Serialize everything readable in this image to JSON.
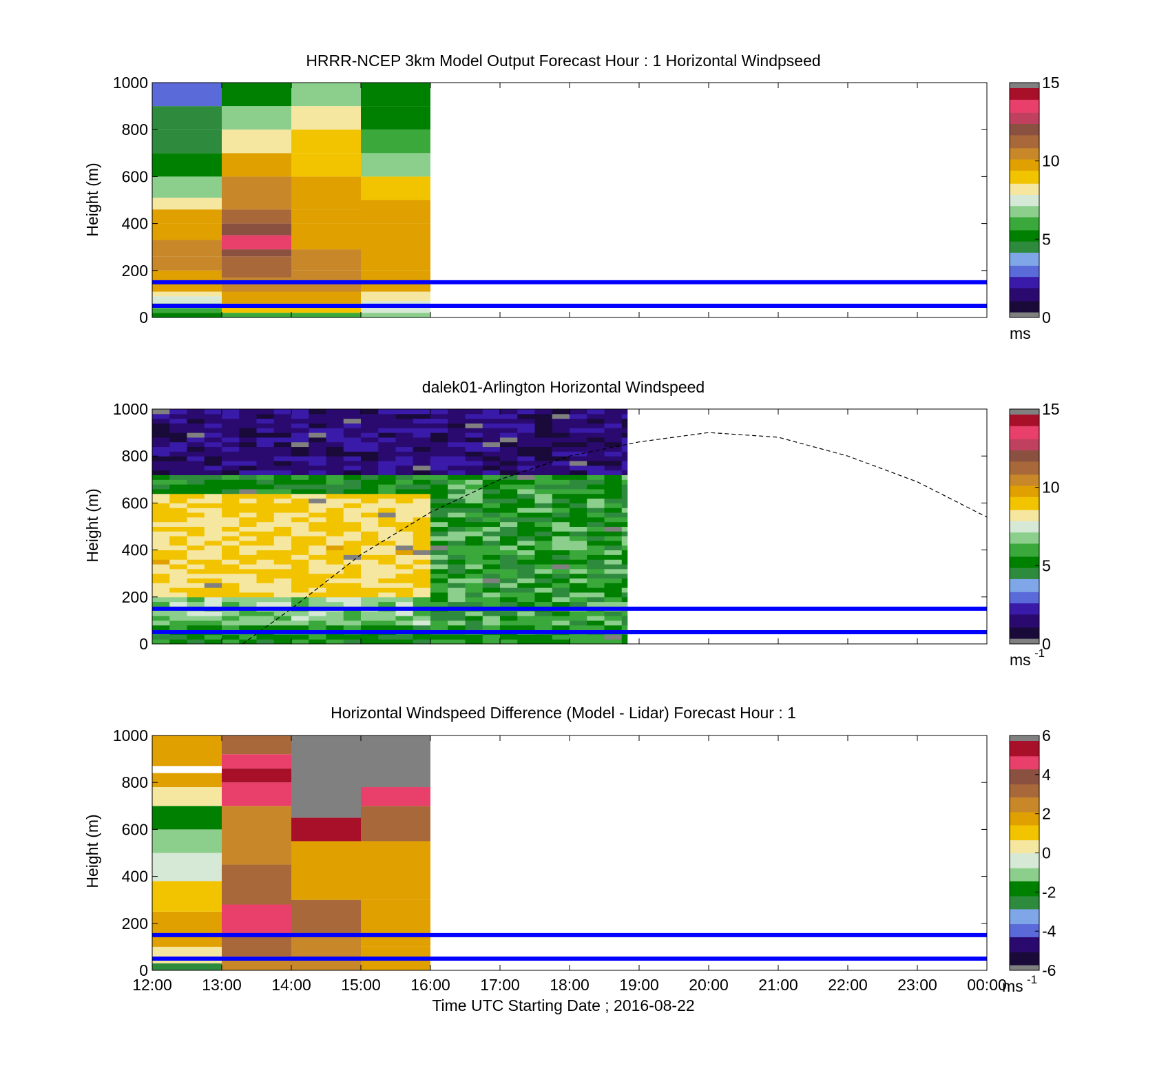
{
  "colormaps": {
    "speed": [
      "#1a0a3a",
      "#2a0a6e",
      "#3a1aa8",
      "#5a6ad8",
      "#7fa6e6",
      "#2e8a3c",
      "#008000",
      "#3aa83a",
      "#8ccf8c",
      "#d6e8d6",
      "#f5e6a0",
      "#f2c400",
      "#e0a000",
      "#c8882a",
      "#a8683a",
      "#8a5040",
      "#c04060",
      "#e8406a",
      "#a8102a"
    ],
    "diff": [
      "#1a0a3a",
      "#2a0a6e",
      "#5a6ad8",
      "#7fa6e6",
      "#2e8a3c",
      "#008000",
      "#8ccf8c",
      "#d6e8d6",
      "#f5e6a0",
      "#f2c400",
      "#e0a000",
      "#c8882a",
      "#a8683a",
      "#8a5040",
      "#e8406a",
      "#a8102a"
    ],
    "cap_color": "#808080",
    "line_color": "#0000ff"
  },
  "shared": {
    "x_ticks": [
      "12:00",
      "13:00",
      "14:00",
      "15:00",
      "16:00",
      "17:00",
      "18:00",
      "19:00",
      "20:00",
      "21:00",
      "22:00",
      "23:00",
      "00:00"
    ],
    "x_label": "Time UTC  Starting Date ; 2016-08-22",
    "y_label": "Height (m)",
    "y_ticks": [
      "0",
      "200",
      "400",
      "600",
      "800",
      "1000"
    ]
  },
  "chart_data": [
    {
      "type": "heatmap",
      "title": "HRRR-NCEP 3km Model Output   Forecast Hour : 1 Horizontal Windpseed",
      "xlabel": "",
      "ylabel": "Height (m)",
      "ylim": [
        0,
        1000
      ],
      "xlim_hours": [
        12,
        24
      ],
      "colormap": "speed",
      "clim": [
        0,
        15
      ],
      "colorbar_ticks": [
        "0",
        "5",
        "10",
        "15"
      ],
      "colorbar_unit": "ms",
      "colorbar_unit_sup": "",
      "reference_lines_m": [
        50,
        150
      ],
      "columns": [
        {
          "start_hour": 12,
          "end_hour": 13,
          "profile": [
            {
              "h0": 0,
              "h1": 20,
              "v": 5.5
            },
            {
              "h0": 20,
              "h1": 40,
              "v": 6.0
            },
            {
              "h0": 40,
              "h1": 60,
              "v": 7.0
            },
            {
              "h0": 60,
              "h1": 90,
              "v": 7.5
            },
            {
              "h0": 90,
              "h1": 110,
              "v": 8.5
            },
            {
              "h0": 110,
              "h1": 150,
              "v": 9.5
            },
            {
              "h0": 150,
              "h1": 200,
              "v": 10.0
            },
            {
              "h0": 200,
              "h1": 260,
              "v": 10.5
            },
            {
              "h0": 260,
              "h1": 330,
              "v": 10.5
            },
            {
              "h0": 330,
              "h1": 400,
              "v": 10.0
            },
            {
              "h0": 400,
              "h1": 460,
              "v": 9.5
            },
            {
              "h0": 460,
              "h1": 510,
              "v": 8.5
            },
            {
              "h0": 510,
              "h1": 600,
              "v": 7.0
            },
            {
              "h0": 600,
              "h1": 700,
              "v": 5.5
            },
            {
              "h0": 700,
              "h1": 800,
              "v": 4.5
            },
            {
              "h0": 800,
              "h1": 900,
              "v": 4.0
            },
            {
              "h0": 900,
              "h1": 1000,
              "v": 3.0
            }
          ]
        },
        {
          "start_hour": 13,
          "end_hour": 14,
          "profile": [
            {
              "h0": 0,
              "h1": 20,
              "v": 6.0
            },
            {
              "h0": 20,
              "h1": 60,
              "v": 9.0
            },
            {
              "h0": 60,
              "h1": 110,
              "v": 9.5
            },
            {
              "h0": 110,
              "h1": 170,
              "v": 10.5
            },
            {
              "h0": 170,
              "h1": 260,
              "v": 11.5
            },
            {
              "h0": 260,
              "h1": 290,
              "v": 12.0
            },
            {
              "h0": 290,
              "h1": 350,
              "v": 13.5
            },
            {
              "h0": 350,
              "h1": 400,
              "v": 12.0
            },
            {
              "h0": 400,
              "h1": 460,
              "v": 11.5
            },
            {
              "h0": 460,
              "h1": 600,
              "v": 10.5
            },
            {
              "h0": 600,
              "h1": 700,
              "v": 9.5
            },
            {
              "h0": 700,
              "h1": 800,
              "v": 8.0
            },
            {
              "h0": 800,
              "h1": 900,
              "v": 6.5
            },
            {
              "h0": 900,
              "h1": 1000,
              "v": 5.0
            }
          ]
        },
        {
          "start_hour": 14,
          "end_hour": 15,
          "profile": [
            {
              "h0": 0,
              "h1": 20,
              "v": 6.0
            },
            {
              "h0": 20,
              "h1": 60,
              "v": 9.0
            },
            {
              "h0": 60,
              "h1": 110,
              "v": 9.5
            },
            {
              "h0": 110,
              "h1": 200,
              "v": 10.5
            },
            {
              "h0": 200,
              "h1": 290,
              "v": 10.5
            },
            {
              "h0": 290,
              "h1": 400,
              "v": 10.0
            },
            {
              "h0": 400,
              "h1": 460,
              "v": 9.5
            },
            {
              "h0": 460,
              "h1": 600,
              "v": 9.5
            },
            {
              "h0": 600,
              "h1": 700,
              "v": 9.0
            },
            {
              "h0": 700,
              "h1": 800,
              "v": 9.0
            },
            {
              "h0": 800,
              "h1": 900,
              "v": 8.0
            },
            {
              "h0": 900,
              "h1": 1000,
              "v": 7.0
            }
          ]
        },
        {
          "start_hour": 15,
          "end_hour": 16,
          "profile": [
            {
              "h0": 0,
              "h1": 20,
              "v": 6.5
            },
            {
              "h0": 20,
              "h1": 70,
              "v": 7.5
            },
            {
              "h0": 70,
              "h1": 110,
              "v": 8.5
            },
            {
              "h0": 110,
              "h1": 200,
              "v": 9.5
            },
            {
              "h0": 200,
              "h1": 330,
              "v": 10.0
            },
            {
              "h0": 330,
              "h1": 400,
              "v": 9.5
            },
            {
              "h0": 400,
              "h1": 500,
              "v": 9.5
            },
            {
              "h0": 500,
              "h1": 600,
              "v": 9.0
            },
            {
              "h0": 600,
              "h1": 700,
              "v": 6.5
            },
            {
              "h0": 700,
              "h1": 800,
              "v": 6.0
            },
            {
              "h0": 800,
              "h1": 900,
              "v": 5.5
            },
            {
              "h0": 900,
              "h1": 1000,
              "v": 5.0
            }
          ]
        }
      ]
    },
    {
      "type": "heatmap",
      "title": "dalek01-Arlington  Horizontal Windspeed",
      "xlabel": "",
      "ylabel": "Height (m)",
      "ylim": [
        0,
        1000
      ],
      "xlim_hours": [
        12,
        24
      ],
      "colormap": "speed",
      "clim": [
        0,
        15
      ],
      "colorbar_ticks": [
        "0",
        "5",
        "10",
        "15"
      ],
      "colorbar_unit": "ms",
      "colorbar_unit_sup": "-1",
      "reference_lines_m": [
        50,
        150
      ],
      "lidar_end_hour": 18.83,
      "time_step_hours": 0.25,
      "height_step_m": 20,
      "layers": [
        {
          "top_m": 80,
          "low": 4.5,
          "high": 6.0
        },
        {
          "top_m": 200,
          "low": 6.0,
          "high": 7.5
        },
        {
          "top_m": 640,
          "low": 8.0,
          "high": 9.5
        },
        {
          "top_m": 720,
          "low": 4.0,
          "high": 6.0
        },
        {
          "top_m": 1000,
          "low": 0.5,
          "high": 2.0
        }
      ],
      "afternoon": {
        "from_hour": 16.0,
        "to_hour": 18.83,
        "low": 4.0,
        "high": 7.0
      },
      "boundary_layer_curve": {
        "hours": [
          13.3,
          14,
          15,
          16,
          17,
          18,
          19,
          20,
          21,
          22,
          23,
          24
        ],
        "height_m": [
          0,
          150,
          380,
          560,
          700,
          800,
          860,
          900,
          880,
          800,
          690,
          540
        ]
      }
    },
    {
      "type": "heatmap",
      "title": "Horizontal Windspeed Difference (Model - Lidar) Forecast Hour : 1",
      "xlabel": "Time UTC  Starting Date ; 2016-08-22",
      "ylabel": "Height (m)",
      "ylim": [
        0,
        1000
      ],
      "xlim_hours": [
        12,
        24
      ],
      "colormap": "diff",
      "clim": [
        -6,
        6
      ],
      "colorbar_ticks": [
        "-6",
        "-4",
        "-2",
        "0",
        "2",
        "4",
        "6"
      ],
      "colorbar_unit": "ms",
      "colorbar_unit_sup": "-1",
      "reference_lines_m": [
        50,
        150
      ],
      "columns": [
        {
          "start_hour": 12,
          "end_hour": 13,
          "profile": [
            {
              "h0": 0,
              "h1": 30,
              "v": -2.5
            },
            {
              "h0": 30,
              "h1": 100,
              "v": 0.5
            },
            {
              "h0": 100,
              "h1": 250,
              "v": 1.5
            },
            {
              "h0": 250,
              "h1": 380,
              "v": 1.0
            },
            {
              "h0": 380,
              "h1": 500,
              "v": -0.5
            },
            {
              "h0": 500,
              "h1": 600,
              "v": -1.0
            },
            {
              "h0": 600,
              "h1": 700,
              "v": -2.0
            },
            {
              "h0": 700,
              "h1": 780,
              "v": 0.5
            },
            {
              "h0": 780,
              "h1": 840,
              "v": 1.5
            },
            {
              "h0": 840,
              "h1": 870,
              "v": null
            },
            {
              "h0": 870,
              "h1": 1000,
              "v": 1.5
            }
          ]
        },
        {
          "start_hour": 13,
          "end_hour": 14,
          "profile": [
            {
              "h0": 0,
              "h1": 60,
              "v": 2.5
            },
            {
              "h0": 60,
              "h1": 150,
              "v": 3.0
            },
            {
              "h0": 150,
              "h1": 280,
              "v": 5.0
            },
            {
              "h0": 280,
              "h1": 450,
              "v": 3.5
            },
            {
              "h0": 450,
              "h1": 700,
              "v": 2.5
            },
            {
              "h0": 700,
              "h1": 800,
              "v": 5.0
            },
            {
              "h0": 800,
              "h1": 860,
              "v": 5.5
            },
            {
              "h0": 860,
              "h1": 920,
              "v": 5.0
            },
            {
              "h0": 920,
              "h1": 1000,
              "v": 3.5
            }
          ]
        },
        {
          "start_hour": 14,
          "end_hour": 15,
          "profile": [
            {
              "h0": 0,
              "h1": 150,
              "v": 2.5
            },
            {
              "h0": 150,
              "h1": 300,
              "v": 3.0
            },
            {
              "h0": 300,
              "h1": 550,
              "v": 2.0
            },
            {
              "h0": 550,
              "h1": 650,
              "v": 5.5
            },
            {
              "h0": 650,
              "h1": 1000,
              "v": "cap"
            }
          ]
        },
        {
          "start_hour": 15,
          "end_hour": 16,
          "profile": [
            {
              "h0": 0,
              "h1": 100,
              "v": 1.5
            },
            {
              "h0": 100,
              "h1": 300,
              "v": 2.0
            },
            {
              "h0": 300,
              "h1": 550,
              "v": 1.5
            },
            {
              "h0": 550,
              "h1": 700,
              "v": 3.0
            },
            {
              "h0": 700,
              "h1": 780,
              "v": 5.0
            },
            {
              "h0": 780,
              "h1": 1000,
              "v": "cap"
            }
          ]
        }
      ]
    }
  ]
}
